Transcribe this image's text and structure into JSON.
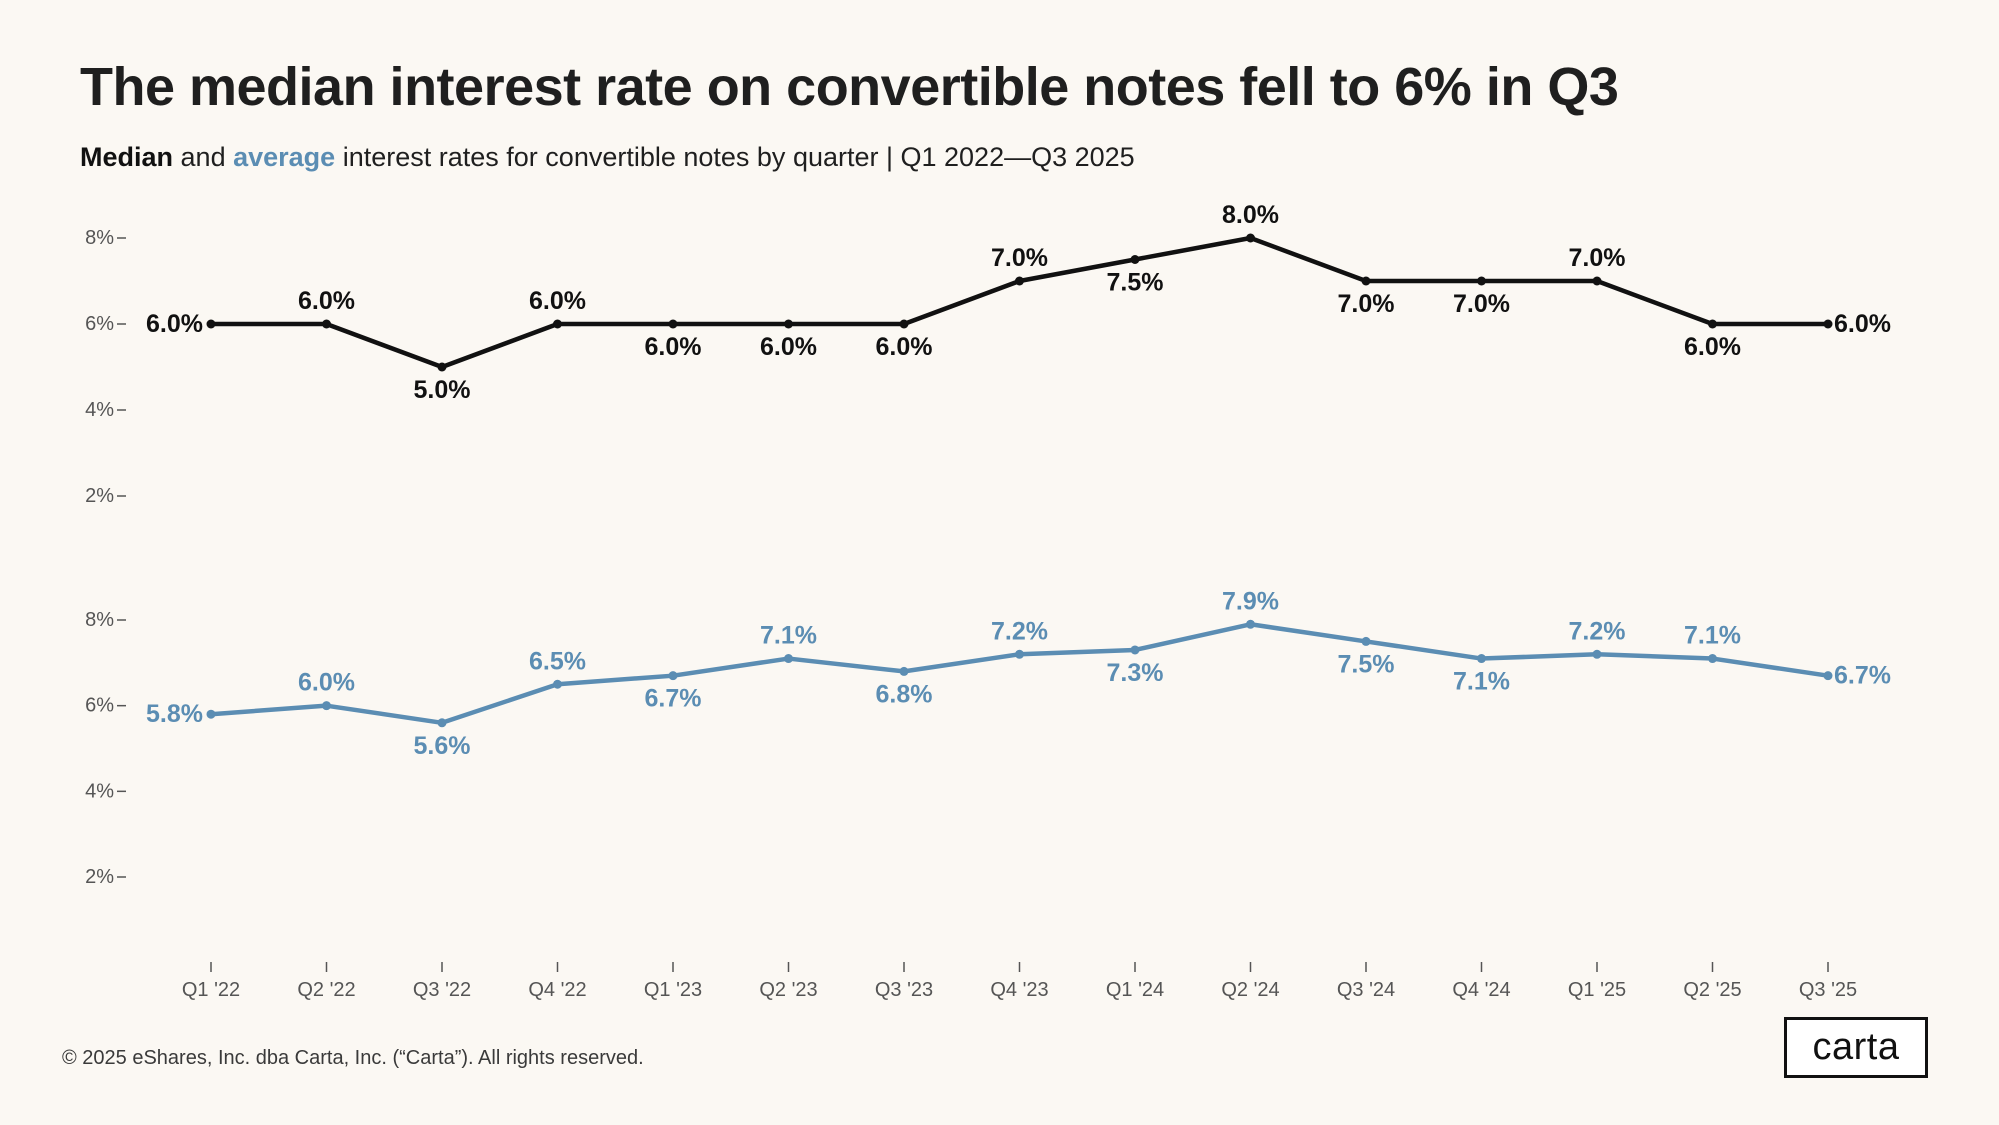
{
  "title": "The median interest rate on convertible notes fell to 6% in Q3",
  "subtitle": {
    "median_word": "Median",
    "and_word": "and",
    "average_word": "average",
    "rest": "interest rates for convertible notes by quarter |  Q1 2022—Q3 2025"
  },
  "footer": "© 2025 eShares, Inc. dba Carta, Inc. (“Carta”). All rights reserved.",
  "logo_text": "carta",
  "colors": {
    "median": "#111111",
    "average": "#5B8DB3",
    "background": "#FBF8F3",
    "axis_text": "#555555"
  },
  "chart_data": {
    "type": "line",
    "categories": [
      "Q1 '22",
      "Q2 '22",
      "Q3 '22",
      "Q4 '22",
      "Q1 '23",
      "Q2 '23",
      "Q3 '23",
      "Q4 '23",
      "Q1 '24",
      "Q2 '24",
      "Q3 '24",
      "Q4 '24",
      "Q1 '25",
      "Q2 '25",
      "Q3 '25"
    ],
    "yticks": [
      "2%",
      "4%",
      "6%",
      "8%"
    ],
    "ylim": [
      2,
      8
    ],
    "series": [
      {
        "name": "Median",
        "values": [
          6.0,
          6.0,
          5.0,
          6.0,
          6.0,
          6.0,
          6.0,
          7.0,
          7.5,
          8.0,
          7.0,
          7.0,
          7.0,
          6.0,
          6.0
        ],
        "labels": [
          "6.0%",
          "6.0%",
          "5.0%",
          "6.0%",
          "6.0%",
          "6.0%",
          "6.0%",
          "7.0%",
          "7.5%",
          "8.0%",
          "7.0%",
          "7.0%",
          "7.0%",
          "6.0%",
          "6.0%"
        ],
        "label_positions": [
          "left",
          "above",
          "below",
          "above",
          "below",
          "below",
          "below",
          "above",
          "below",
          "above",
          "below",
          "below",
          "above",
          "below",
          "right"
        ]
      },
      {
        "name": "Average",
        "values": [
          5.8,
          6.0,
          5.6,
          6.5,
          6.7,
          7.1,
          6.8,
          7.2,
          7.3,
          7.9,
          7.5,
          7.1,
          7.2,
          7.1,
          6.7
        ],
        "labels": [
          "5.8%",
          "6.0%",
          "5.6%",
          "6.5%",
          "6.7%",
          "7.1%",
          "6.8%",
          "7.2%",
          "7.3%",
          "7.9%",
          "7.5%",
          "7.1%",
          "7.2%",
          "7.1%",
          "6.7%"
        ],
        "label_positions": [
          "left",
          "above",
          "below",
          "above",
          "below",
          "above",
          "below",
          "above",
          "below",
          "above",
          "below",
          "below",
          "above",
          "above",
          "right"
        ]
      }
    ],
    "grid": false,
    "legend": "none"
  }
}
